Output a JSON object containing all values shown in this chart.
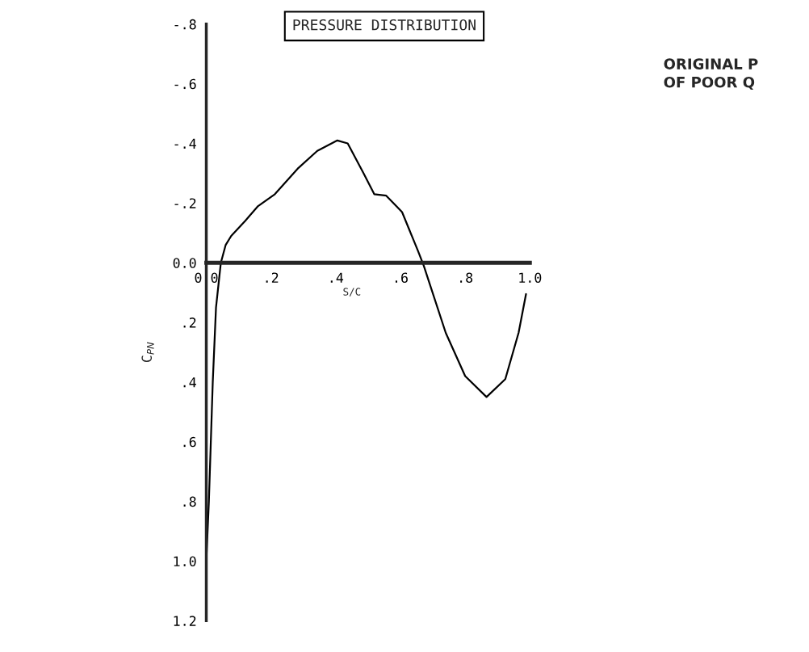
{
  "chart_data": {
    "type": "line",
    "title": "PRESSURE DISTRIBUTION",
    "xlabel": "S/C",
    "ylabel": "C$_{PN}$",
    "annotations": [
      "ORIGINAL P",
      "OF POOR Q"
    ],
    "x": [
      0,
      0.008,
      0.02,
      0.03,
      0.045,
      0.06,
      0.077,
      0.12,
      0.16,
      0.212,
      0.282,
      0.343,
      0.405,
      0.437,
      0.486,
      0.519,
      0.556,
      0.605,
      0.654,
      0.672,
      0.74,
      0.8,
      0.866,
      0.924,
      0.965,
      0.988
    ],
    "series": [
      {
        "color": "#000000",
        "values": [
          1.0,
          0.8,
          0.4,
          0.15,
          0.0,
          -0.06,
          -0.09,
          -0.14,
          -0.19,
          -0.23,
          -0.315,
          -0.375,
          -0.41,
          -0.4,
          -0.3,
          -0.23,
          -0.225,
          -0.17,
          -0.04,
          0.01,
          0.235,
          0.38,
          0.45,
          0.39,
          0.235,
          0.105
        ]
      }
    ],
    "xlim": [
      0,
      1.0
    ],
    "ylim": [
      1.2,
      -0.8
    ],
    "xticks": [
      {
        "value": 0,
        "label": "0.0"
      },
      {
        "value": 0.2,
        "label": ".2"
      },
      {
        "value": 0.4,
        "label": ".4"
      },
      {
        "value": 0.6,
        "label": ".6"
      },
      {
        "value": 0.8,
        "label": ".8"
      },
      {
        "value": 1.0,
        "label": "1.0"
      }
    ],
    "yticks": [
      {
        "value": -0.8,
        "label": "-.8"
      },
      {
        "value": -0.6,
        "label": "-.6"
      },
      {
        "value": -0.4,
        "label": "-.4"
      },
      {
        "value": -0.2,
        "label": "-.2"
      },
      {
        "value": 0,
        "label": "0.0"
      },
      {
        "value": 0.2,
        "label": ".2"
      },
      {
        "value": 0.4,
        "label": ".4"
      },
      {
        "value": 0.6,
        "label": ".6"
      },
      {
        "value": 0.8,
        "label": ".8"
      },
      {
        "value": 1.0,
        "label": "1.0"
      },
      {
        "value": 1.2,
        "label": "1.2"
      }
    ],
    "grid": false,
    "line_style": "solid",
    "marker": "none"
  }
}
